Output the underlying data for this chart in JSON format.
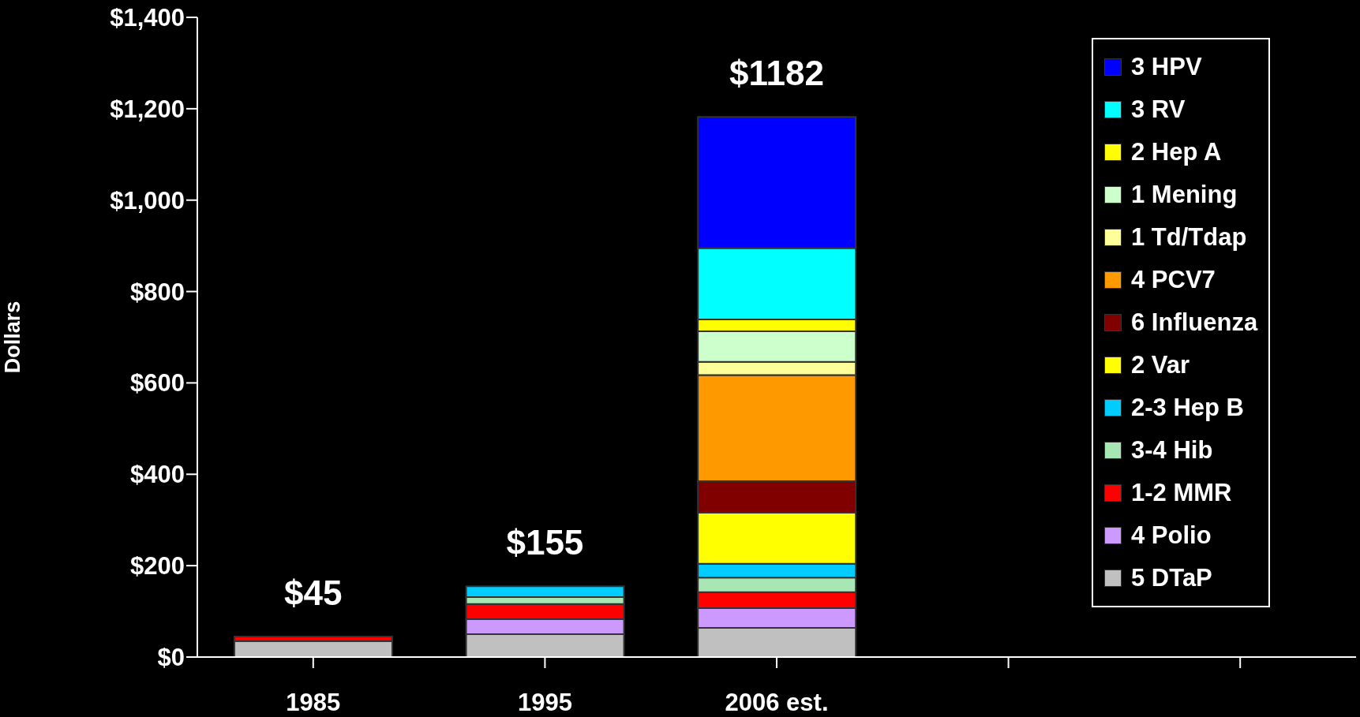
{
  "chart_data": {
    "type": "bar",
    "stacked": true,
    "ylabel": "Dollars",
    "categories": [
      "1985",
      "1995",
      "2006 est.",
      null,
      null
    ],
    "ylim": [
      0,
      1400
    ],
    "yticks": [
      {
        "value": 0,
        "label": "$0"
      },
      {
        "value": 200,
        "label": "$200"
      },
      {
        "value": 400,
        "label": "$400"
      },
      {
        "value": 600,
        "label": "$600"
      },
      {
        "value": 800,
        "label": "$800"
      },
      {
        "value": 1000,
        "label": "$1,000"
      },
      {
        "value": 1200,
        "label": "$1,200"
      },
      {
        "value": 1400,
        "label": "$1,400"
      }
    ],
    "totals": [
      "$45",
      "$155",
      "$1182",
      null,
      null
    ],
    "legend": "top right",
    "series": [
      {
        "name": "5 DTaP",
        "color": "#c0c0c0",
        "values": [
          35,
          50,
          64,
          null,
          null
        ]
      },
      {
        "name": "4 Polio",
        "color": "#cc99ff",
        "values": [
          null,
          33,
          43,
          null,
          null
        ]
      },
      {
        "name": "1-2 MMR",
        "color": "#ff0000",
        "values": [
          10,
          33,
          35,
          null,
          null
        ]
      },
      {
        "name": "3-4 Hib",
        "color": "#a8e6b4",
        "values": [
          null,
          15,
          32,
          null,
          null
        ]
      },
      {
        "name": "2-3 Hep B",
        "color": "#00ccff",
        "values": [
          null,
          24,
          30,
          null,
          null
        ]
      },
      {
        "name": "2 Var",
        "color": "#ffff00",
        "values": [
          null,
          null,
          112,
          null,
          null
        ]
      },
      {
        "name": "6 Influenza",
        "color": "#800000",
        "values": [
          null,
          null,
          69,
          null,
          null
        ]
      },
      {
        "name": "4 PCV7",
        "color": "#ff9900",
        "values": [
          null,
          null,
          232,
          null,
          null
        ]
      },
      {
        "name": "1 Td/Tdap",
        "color": "#ffff99",
        "values": [
          null,
          null,
          29,
          null,
          null
        ]
      },
      {
        "name": "1 Mening",
        "color": "#ccffcc",
        "values": [
          null,
          null,
          67,
          null,
          null
        ]
      },
      {
        "name": "2 Hep A",
        "color": "#fffe00",
        "values": [
          null,
          null,
          26,
          null,
          null
        ]
      },
      {
        "name": "3 RV",
        "color": "#00ffff",
        "values": [
          null,
          null,
          156,
          null,
          null
        ]
      },
      {
        "name": "3 HPV",
        "color": "#0000ff",
        "values": [
          null,
          null,
          287,
          null,
          null
        ]
      }
    ]
  }
}
